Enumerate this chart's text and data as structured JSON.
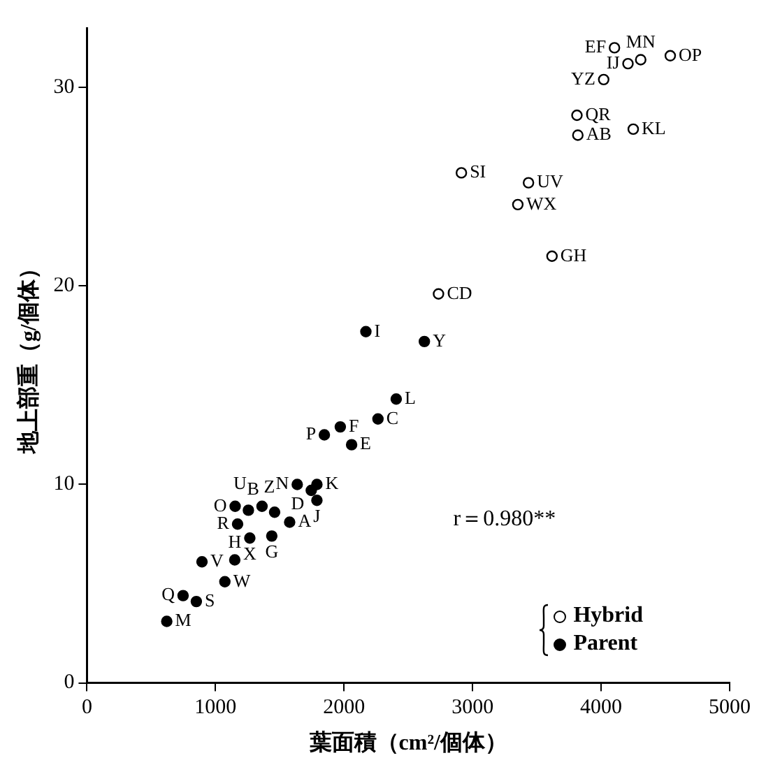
{
  "chart_data": {
    "type": "scatter",
    "xlabel": "葉面積（cm²/個体）",
    "ylabel": "地上部重（g/個体）",
    "xlim": [
      0,
      5000
    ],
    "xticks": [
      0,
      1000,
      2000,
      3000,
      4000,
      5000
    ],
    "ylim": [
      0,
      33
    ],
    "yticks": [
      0,
      10,
      20,
      30
    ],
    "grid": false,
    "legend": "bottom right",
    "marker": "circle",
    "series": [
      {
        "name": "Hybrid",
        "color": "#000000",
        "x": [
          4104,
          4308,
          4209,
          4538,
          4020,
          3812,
          3819,
          4250,
          2913,
          3435,
          3352,
          3618,
          2735
        ],
        "values": [
          32.0,
          31.4,
          31.2,
          31.6,
          30.4,
          28.6,
          27.6,
          27.9,
          25.7,
          25.2,
          24.1,
          21.5,
          19.6
        ]
      },
      {
        "name": "Parent",
        "color": "#000000",
        "x": [
          2170,
          2625,
          2406,
          2264,
          1971,
          1847,
          2059,
          1636,
          1789,
          1745,
          1789,
          1460,
          1362,
          1153,
          1256,
          1172,
          1577,
          1267,
          1438,
          895,
          1150,
          1073,
          748,
          851,
          621
        ],
        "values": [
          17.7,
          17.2,
          14.3,
          13.3,
          12.9,
          12.5,
          12.0,
          10.0,
          10.0,
          9.7,
          9.2,
          8.6,
          8.9,
          8.9,
          8.7,
          8.0,
          8.1,
          7.3,
          7.4,
          6.1,
          6.2,
          5.1,
          4.4,
          4.1,
          3.1
        ]
      }
    ],
    "annotations": [
      {
        "text": "EF",
        "x": 4104,
        "y": 32.0
      },
      {
        "text": "MN",
        "x": 4308,
        "y": 31.4
      },
      {
        "text": "IJ",
        "x": 4209,
        "y": 31.2
      },
      {
        "text": "OP",
        "x": 4538,
        "y": 31.6
      },
      {
        "text": "YZ",
        "x": 4020,
        "y": 30.4
      },
      {
        "text": "QR",
        "x": 3812,
        "y": 28.6
      },
      {
        "text": "AB",
        "x": 3819,
        "y": 27.6
      },
      {
        "text": "KL",
        "x": 4250,
        "y": 27.9
      },
      {
        "text": "SI",
        "x": 2913,
        "y": 25.7
      },
      {
        "text": "UV",
        "x": 3435,
        "y": 25.2
      },
      {
        "text": "WX",
        "x": 3352,
        "y": 24.1
      },
      {
        "text": "GH",
        "x": 3618,
        "y": 21.5
      },
      {
        "text": "CD",
        "x": 2735,
        "y": 19.6
      },
      {
        "text": "I",
        "x": 2170,
        "y": 17.7
      },
      {
        "text": "Y",
        "x": 2625,
        "y": 17.2
      },
      {
        "text": "L",
        "x": 2406,
        "y": 14.3
      },
      {
        "text": "C",
        "x": 2264,
        "y": 13.3
      },
      {
        "text": "F",
        "x": 1971,
        "y": 12.9
      },
      {
        "text": "P",
        "x": 1847,
        "y": 12.5
      },
      {
        "text": "E",
        "x": 2059,
        "y": 12.0
      },
      {
        "text": "N",
        "x": 1636,
        "y": 10.0
      },
      {
        "text": "K",
        "x": 1789,
        "y": 10.0
      },
      {
        "text": "D",
        "x": 1745,
        "y": 9.7
      },
      {
        "text": "J",
        "x": 1789,
        "y": 9.2
      },
      {
        "text": "B",
        "x": 1460,
        "y": 8.6
      },
      {
        "text": "U",
        "x": 1362,
        "y": 8.9
      },
      {
        "text": "O",
        "x": 1153,
        "y": 8.9
      },
      {
        "text": "Z",
        "x": 1256,
        "y": 8.7
      },
      {
        "text": "R",
        "x": 1172,
        "y": 8.0
      },
      {
        "text": "A",
        "x": 1577,
        "y": 8.1
      },
      {
        "text": "X",
        "x": 1267,
        "y": 7.3
      },
      {
        "text": "G",
        "x": 1438,
        "y": 7.4
      },
      {
        "text": "V",
        "x": 895,
        "y": 6.1
      },
      {
        "text": "H",
        "x": 1150,
        "y": 6.2
      },
      {
        "text": "W",
        "x": 1073,
        "y": 5.1
      },
      {
        "text": "Q",
        "x": 748,
        "y": 4.4
      },
      {
        "text": "S",
        "x": 851,
        "y": 4.1
      },
      {
        "text": "M",
        "x": 621,
        "y": 3.1
      },
      "r＝0.980**"
    ]
  }
}
